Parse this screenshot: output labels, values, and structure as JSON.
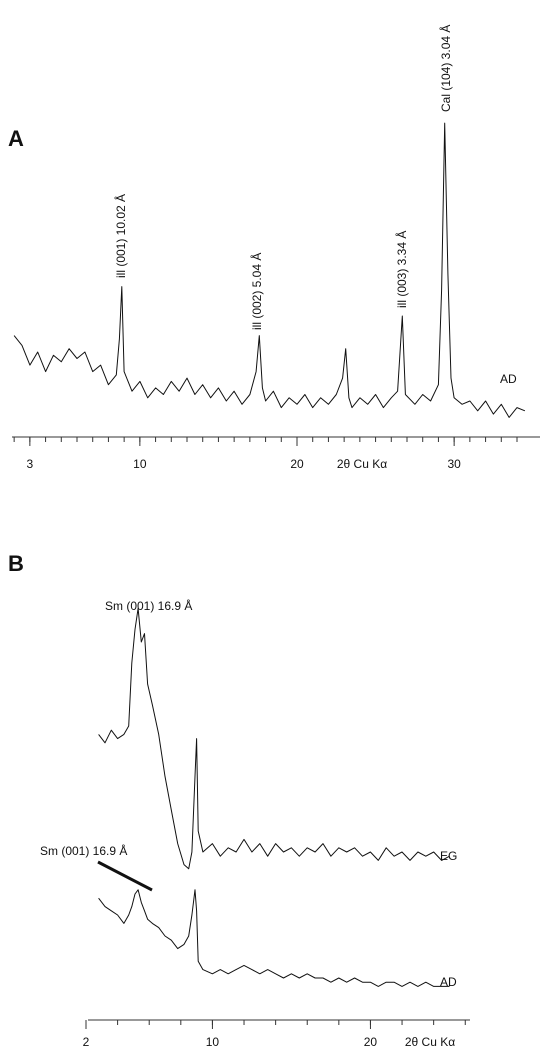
{
  "chart_data": [
    {
      "type": "line",
      "panel_label": "A",
      "xlabel": "2θ Cu Kα",
      "x": [
        2.0,
        2.5,
        3.0,
        3.5,
        4.0,
        4.5,
        5.0,
        5.5,
        6.0,
        6.5,
        7.0,
        7.5,
        8.0,
        8.5,
        8.7,
        8.85,
        9.0,
        9.5,
        10.0,
        10.5,
        11.0,
        11.5,
        12.0,
        12.5,
        13.0,
        13.5,
        14.0,
        14.5,
        15.0,
        15.5,
        16.0,
        16.5,
        17.0,
        17.4,
        17.6,
        17.8,
        18.0,
        18.5,
        19.0,
        19.5,
        20.0,
        20.5,
        21.0,
        21.5,
        22.0,
        22.5,
        22.9,
        23.1,
        23.3,
        23.5,
        24.0,
        24.5,
        25.0,
        25.5,
        26.0,
        26.4,
        26.7,
        26.9,
        27.5,
        28.0,
        28.5,
        29.0,
        29.2,
        29.4,
        29.6,
        29.8,
        30.0,
        30.5,
        31.0,
        31.5,
        32.0,
        32.5,
        33.0,
        33.5,
        34.0,
        34.5
      ],
      "series": [
        {
          "name": "AD",
          "color": "#111111",
          "values": [
            31,
            28,
            22,
            26,
            20,
            25,
            23,
            27,
            24,
            26,
            20,
            22,
            16,
            19,
            30,
            46,
            20,
            14,
            17,
            12,
            15,
            13,
            17,
            14,
            18,
            13,
            16,
            12,
            15,
            11,
            14,
            10,
            13,
            20,
            31,
            15,
            11,
            14,
            9,
            12,
            10,
            13,
            9,
            12,
            10,
            13,
            18,
            27,
            12,
            9,
            12,
            10,
            13,
            9,
            12,
            14,
            37,
            13,
            10,
            13,
            11,
            16,
            45,
            96,
            50,
            18,
            12,
            10,
            11,
            8,
            11,
            7,
            10,
            6,
            9,
            8
          ]
        }
      ],
      "xlim": [
        1.8,
        34.7
      ],
      "ylim": [
        0,
        100
      ],
      "xticks": [
        3,
        10,
        20,
        30
      ],
      "xminor_ticks": [
        2,
        3,
        4,
        5,
        6,
        7,
        8,
        9,
        10,
        11,
        12,
        13,
        14,
        15,
        16,
        17,
        18,
        19,
        20,
        21,
        22,
        23,
        24,
        25,
        26,
        27,
        28,
        29,
        30,
        31,
        32,
        33,
        34
      ],
      "annotations": [
        "ill (001) 10.02 Å",
        "ill (002) 5.04 Å",
        "ill (003) 3.34 Å",
        "Cal (104) 3.04 Å"
      ]
    },
    {
      "type": "line",
      "panel_label": "B",
      "xlabel": "2θ Cu Kα",
      "x": [
        2.8,
        3.2,
        3.6,
        4.0,
        4.4,
        4.7,
        4.9,
        5.1,
        5.3,
        5.5,
        5.7,
        5.9,
        6.2,
        6.6,
        7.0,
        7.4,
        7.8,
        8.2,
        8.5,
        8.7,
        8.9,
        9.0,
        9.1,
        9.4,
        10,
        10.5,
        11,
        11.5,
        12,
        12.5,
        13,
        13.5,
        14,
        14.5,
        15,
        15.5,
        16,
        16.5,
        17,
        17.5,
        18,
        18.5,
        19,
        19.5,
        20,
        20.5,
        21,
        21.5,
        22,
        22.5,
        23,
        23.5,
        24,
        24.5,
        25
      ],
      "series": [
        {
          "name": "EG",
          "color": "#111111",
          "values": [
            68,
            66,
            69,
            67,
            68,
            70,
            85,
            93,
            98,
            90,
            92,
            80,
            75,
            68,
            58,
            50,
            42,
            37,
            36,
            40,
            58,
            67,
            45,
            40,
            42,
            39,
            41,
            40,
            43,
            40,
            42,
            39,
            42,
            40,
            41,
            39,
            41,
            40,
            42,
            39,
            41,
            40,
            41,
            39,
            40,
            38,
            41,
            39,
            40,
            38,
            40,
            39,
            40,
            38,
            39
          ]
        },
        {
          "name": "AD",
          "color": "#111111",
          "values": [
            29,
            27,
            26,
            25,
            23,
            25,
            27,
            30,
            31,
            28,
            26,
            24,
            23,
            22,
            20,
            19,
            17,
            18,
            20,
            25,
            31,
            26,
            14,
            12,
            11,
            12,
            11,
            12,
            13,
            12,
            11,
            12,
            11,
            10,
            11,
            10,
            11,
            10,
            10,
            9,
            10,
            9,
            10,
            9,
            9,
            8,
            9,
            9,
            8,
            9,
            8,
            9,
            8,
            8,
            8
          ]
        }
      ],
      "xlim": [
        2,
        26.3
      ],
      "ylim": [
        0,
        100
      ],
      "xticks": [
        2,
        10,
        20
      ],
      "xminor_ticks": [
        2,
        4,
        6,
        8,
        10,
        12,
        14,
        16,
        18,
        20,
        22,
        24,
        26
      ],
      "annotations": [
        "Sm (001)  16.9  Å",
        "Sm (001)  16.9  Å"
      ]
    }
  ]
}
